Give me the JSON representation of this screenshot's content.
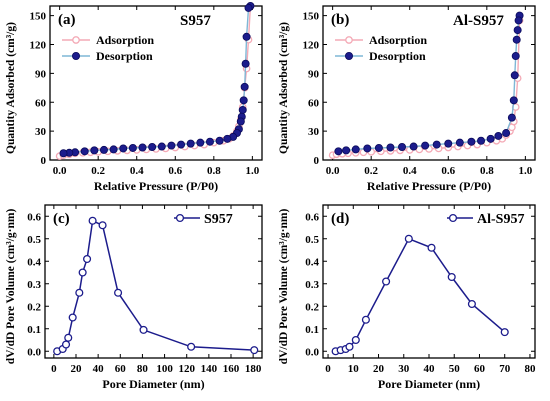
{
  "chart_data": [
    {
      "type": "line",
      "panel": "(a)",
      "sample": "S957",
      "xlabel": "Relative Pressure (P/P0)",
      "ylabel": "Quantity Adsorbed (cm³/g)",
      "xlim": [
        -0.05,
        1.05
      ],
      "ylim": [
        0,
        160
      ],
      "xticks": [
        0.0,
        0.2,
        0.4,
        0.6,
        0.8,
        1.0
      ],
      "xtick_labels": [
        "0.0",
        "0.2",
        "0.4",
        "0.6",
        "0.8",
        "1.0"
      ],
      "yticks": [
        0,
        30,
        60,
        90,
        120,
        150
      ],
      "ytick_labels": [
        "0",
        "30",
        "60",
        "90",
        "120",
        "150"
      ],
      "legend": "top-left",
      "series": [
        {
          "name": "Adsorption",
          "color": "#f4aab6",
          "marker": "open-circle",
          "x": [
            0.0,
            0.02,
            0.05,
            0.08,
            0.12,
            0.16,
            0.2,
            0.25,
            0.3,
            0.35,
            0.4,
            0.45,
            0.5,
            0.55,
            0.6,
            0.65,
            0.7,
            0.75,
            0.8,
            0.85,
            0.88,
            0.9,
            0.92,
            0.93,
            0.94,
            0.95,
            0.96,
            0.97,
            0.98,
            0.99
          ],
          "y": [
            4,
            5,
            6,
            7,
            7.5,
            8,
            8.5,
            9,
            9.5,
            10,
            10.5,
            11,
            11.5,
            12,
            13,
            14,
            15,
            16,
            18,
            20,
            22,
            25,
            30,
            35,
            42,
            55,
            75,
            95,
            125,
            160
          ]
        },
        {
          "name": "Desorption",
          "color": "#1c1c8c",
          "marker": "filled-circle",
          "x": [
            0.99,
            0.98,
            0.97,
            0.965,
            0.96,
            0.955,
            0.95,
            0.945,
            0.94,
            0.93,
            0.92,
            0.9,
            0.87,
            0.83,
            0.78,
            0.73,
            0.68,
            0.63,
            0.58,
            0.53,
            0.48,
            0.43,
            0.38,
            0.33,
            0.28,
            0.23,
            0.18,
            0.13,
            0.08,
            0.05,
            0.02
          ],
          "y": [
            160,
            158,
            128,
            100,
            76,
            62,
            52,
            45,
            40,
            32,
            28,
            24,
            22,
            20,
            19,
            18,
            17,
            16,
            15,
            14,
            13.5,
            13,
            12.5,
            12,
            11,
            10.5,
            10,
            9,
            8,
            7.5,
            7
          ]
        }
      ]
    },
    {
      "type": "line",
      "panel": "(b)",
      "sample": "Al-S957",
      "xlabel": "Relative Pressure (P/P0)",
      "ylabel": "Quantity Adsorbed (cm³/g)",
      "xlim": [
        -0.05,
        1.05
      ],
      "ylim": [
        0,
        160
      ],
      "xticks": [
        0.0,
        0.2,
        0.4,
        0.6,
        0.8,
        1.0
      ],
      "xtick_labels": [
        "0.0",
        "0.2",
        "0.4",
        "0.6",
        "0.8",
        "1.0"
      ],
      "yticks": [
        0,
        30,
        60,
        90,
        120,
        150
      ],
      "ytick_labels": [
        "0",
        "30",
        "60",
        "90",
        "120",
        "150"
      ],
      "legend": "top-left",
      "series": [
        {
          "name": "Adsorption",
          "color": "#f4aab6",
          "marker": "open-circle",
          "x": [
            0.0,
            0.02,
            0.05,
            0.08,
            0.12,
            0.16,
            0.2,
            0.25,
            0.3,
            0.35,
            0.4,
            0.45,
            0.5,
            0.55,
            0.6,
            0.65,
            0.7,
            0.75,
            0.8,
            0.85,
            0.88,
            0.9,
            0.92,
            0.93,
            0.94,
            0.95,
            0.96,
            0.97
          ],
          "y": [
            5,
            6,
            6.5,
            7,
            7.5,
            8,
            8.5,
            9,
            9.5,
            10,
            10.5,
            11,
            11.5,
            12,
            13,
            14,
            15,
            16,
            18,
            20,
            22,
            26,
            30,
            34,
            40,
            55,
            85,
            145
          ]
        },
        {
          "name": "Desorption",
          "color": "#1c1c8c",
          "marker": "filled-circle",
          "x": [
            0.97,
            0.965,
            0.96,
            0.955,
            0.95,
            0.945,
            0.94,
            0.93,
            0.9,
            0.86,
            0.82,
            0.77,
            0.72,
            0.66,
            0.6,
            0.54,
            0.48,
            0.42,
            0.36,
            0.3,
            0.24,
            0.18,
            0.12,
            0.07,
            0.03
          ],
          "y": [
            150,
            145,
            135,
            125,
            108,
            88,
            62,
            44,
            28,
            25,
            22,
            20,
            19,
            18,
            17,
            16,
            15,
            14,
            13.5,
            13,
            12.5,
            12,
            11,
            10,
            9
          ]
        }
      ]
    },
    {
      "type": "line",
      "panel": "(c)",
      "sample": "S957",
      "xlabel": "Pore Diameter (nm)",
      "ylabel": "dV/dD Pore Volume (cm³/g·nm)",
      "xlim": [
        -8,
        188
      ],
      "ylim": [
        -0.03,
        0.65
      ],
      "xticks": [
        0,
        20,
        40,
        60,
        80,
        100,
        120,
        140,
        160,
        180
      ],
      "xtick_labels": [
        "0",
        "20",
        "40",
        "60",
        "80",
        "100",
        "120",
        "140",
        "160",
        "180"
      ],
      "yticks": [
        0.0,
        0.1,
        0.2,
        0.3,
        0.4,
        0.5,
        0.6
      ],
      "ytick_labels": [
        "0.0",
        "0.1",
        "0.2",
        "0.3",
        "0.4",
        "0.5",
        "0.6"
      ],
      "legend": "top-right",
      "series": [
        {
          "name": "S957",
          "color": "#1c1c8c",
          "marker": "open-circle",
          "x": [
            3,
            8,
            11,
            13,
            17,
            23,
            26,
            30,
            35,
            44,
            58,
            81,
            124,
            181
          ],
          "y": [
            0.0,
            0.01,
            0.03,
            0.06,
            0.15,
            0.26,
            0.35,
            0.41,
            0.58,
            0.56,
            0.26,
            0.095,
            0.02,
            0.005
          ]
        }
      ]
    },
    {
      "type": "line",
      "panel": "(d)",
      "sample": "Al-S957",
      "xlabel": "Pore Diameter (nm)",
      "ylabel": "dV/dD Pore Volume (cm³/g·nm)",
      "xlim": [
        -2,
        82
      ],
      "ylim": [
        -0.03,
        0.65
      ],
      "xticks": [
        0,
        10,
        20,
        30,
        40,
        50,
        60,
        70,
        80
      ],
      "xtick_labels": [
        "0",
        "10",
        "20",
        "30",
        "40",
        "50",
        "60",
        "70",
        "80"
      ],
      "yticks": [
        0.0,
        0.1,
        0.2,
        0.3,
        0.4,
        0.5,
        0.6
      ],
      "ytick_labels": [
        "0.0",
        "0.1",
        "0.2",
        "0.3",
        "0.4",
        "0.5",
        "0.6"
      ],
      "legend": "top-right",
      "series": [
        {
          "name": "Al-S957",
          "color": "#1c1c8c",
          "marker": "open-circle",
          "x": [
            3,
            5,
            7,
            8.5,
            11,
            15,
            23,
            32,
            41,
            49,
            57,
            70
          ],
          "y": [
            0.0,
            0.005,
            0.01,
            0.02,
            0.05,
            0.14,
            0.31,
            0.5,
            0.46,
            0.33,
            0.21,
            0.085
          ]
        }
      ]
    }
  ]
}
